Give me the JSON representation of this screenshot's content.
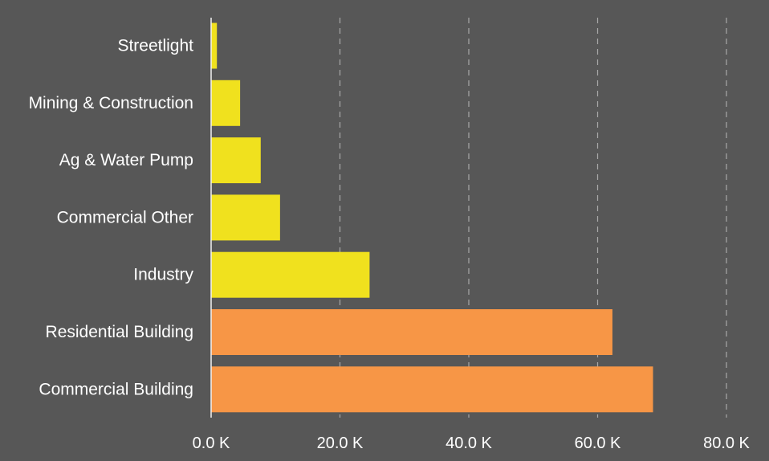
{
  "chart_data": {
    "type": "bar",
    "orientation": "horizontal",
    "title": "",
    "xlabel": "",
    "ylabel": "",
    "categories": [
      "Streetlight",
      "Mining & Construction",
      "Ag & Water Pump",
      "Commercial Other",
      "Industry",
      "Residential Building",
      "Commercial Building"
    ],
    "values": [
      900,
      4500,
      7700,
      10700,
      24600,
      62300,
      68600
    ],
    "bar_colors": [
      "#f0e11e",
      "#f0e11e",
      "#f0e11e",
      "#f0e11e",
      "#f0e11e",
      "#f79646",
      "#f79646"
    ],
    "xlim": [
      0,
      80000
    ],
    "xticks": [
      0,
      20000,
      40000,
      60000,
      80000
    ],
    "xtick_labels": [
      "0.0 K",
      "20.0 K",
      "40.0 K",
      "60.0 K",
      "80.0 K"
    ],
    "grid": "vertical dashed",
    "legend": "none",
    "background_color": "#575757",
    "text_color": "#ffffff"
  }
}
